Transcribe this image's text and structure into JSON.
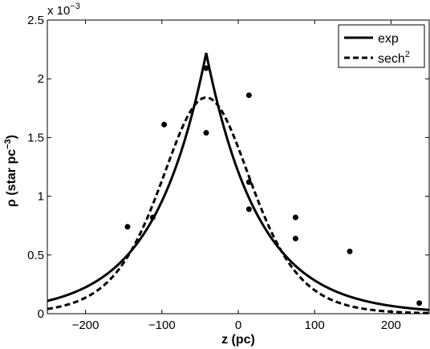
{
  "chart_data": {
    "type": "line",
    "title": "",
    "xlabel": "z (pc)",
    "ylabel_main": "ρ (star pc",
    "ylabel_sup": "−3",
    "ylabel_close": ")",
    "y_multiplier": {
      "base": "x 10",
      "exp": "−3"
    },
    "xlim": [
      -250,
      250
    ],
    "ylim": [
      0,
      2.5
    ],
    "xticks": [
      -200,
      -100,
      0,
      100,
      200
    ],
    "xtick_labels": [
      "−200",
      "−100",
      "0",
      "100",
      "200"
    ],
    "yticks": [
      0,
      0.5,
      1,
      1.5,
      2,
      2.5
    ],
    "ytick_labels": [
      "0",
      "0.5",
      "1",
      "1.5",
      "2",
      "2.5"
    ],
    "grid": false,
    "legend_position": "top-right",
    "series": [
      {
        "name": "exp",
        "name_sup": "",
        "style": "solid",
        "model": "exponential",
        "params": {
          "peak": 2.22,
          "center": -42,
          "scale": 69
        }
      },
      {
        "name": "sech",
        "name_sup": "2",
        "style": "dashed",
        "model": "sech2",
        "params": {
          "peak": 1.84,
          "center": -42,
          "scale": 80
        }
      }
    ],
    "points": [
      {
        "x": -145,
        "y": 0.74
      },
      {
        "x": -112,
        "y": 0.82
      },
      {
        "x": -97,
        "y": 1.61
      },
      {
        "x": -42,
        "y": 2.09
      },
      {
        "x": -42,
        "y": 1.54
      },
      {
        "x": 14,
        "y": 1.86
      },
      {
        "x": 14,
        "y": 1.12
      },
      {
        "x": 14,
        "y": 0.89
      },
      {
        "x": 75,
        "y": 0.82
      },
      {
        "x": 75,
        "y": 0.64
      },
      {
        "x": 146,
        "y": 0.53
      },
      {
        "x": 237,
        "y": 0.09
      }
    ]
  }
}
